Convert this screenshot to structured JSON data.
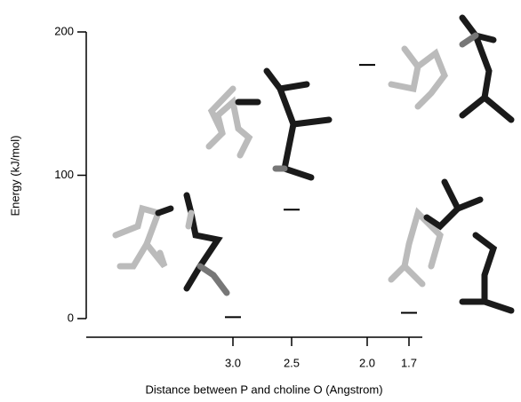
{
  "chart_data": {
    "type": "level",
    "y_label": "Energy (kJ/mol)",
    "x_label": "Distance between P and choline O (Angstrom)",
    "categories": [
      "3.0",
      "2.5",
      "2.0",
      "1.7"
    ],
    "values": [
      1,
      76,
      177,
      4
    ],
    "color": "#000000",
    "ylim": [
      0,
      200
    ],
    "yticks": [
      0,
      100,
      200
    ]
  }
}
